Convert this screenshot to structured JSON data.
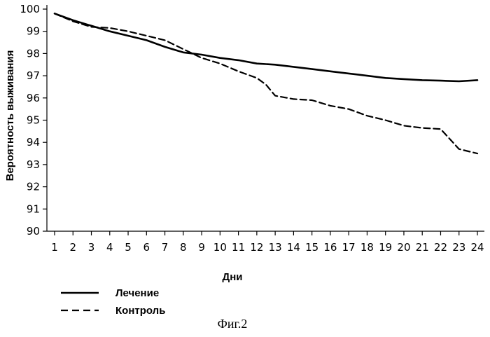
{
  "chart_data": {
    "type": "line",
    "title": "",
    "xlabel": "Дни",
    "ylabel": "Вероятность выживания",
    "caption": "Фиг.2",
    "xlim": [
      1,
      24
    ],
    "ylim": [
      90,
      100
    ],
    "x_ticks": [
      "1",
      "2",
      "3",
      "4",
      "5",
      "6",
      "7",
      "8",
      "9",
      "10",
      "11",
      "12",
      "13",
      "14",
      "15",
      "16",
      "17",
      "18",
      "19",
      "20",
      "21",
      "22",
      "23",
      "24"
    ],
    "y_ticks": [
      "90",
      "91",
      "92",
      "93",
      "94",
      "95",
      "96",
      "97",
      "98",
      "99",
      "100"
    ],
    "grid": false,
    "legend_position": "bottom-left",
    "series": [
      {
        "name": "Лечение",
        "style": "solid",
        "color": "#000000",
        "points": [
          [
            1,
            99.8
          ],
          [
            2,
            99.5
          ],
          [
            3,
            99.25
          ],
          [
            4,
            99.0
          ],
          [
            5,
            98.8
          ],
          [
            6,
            98.6
          ],
          [
            7,
            98.3
          ],
          [
            8,
            98.05
          ],
          [
            9,
            97.95
          ],
          [
            10,
            97.8
          ],
          [
            11,
            97.7
          ],
          [
            12,
            97.55
          ],
          [
            13,
            97.5
          ],
          [
            14,
            97.4
          ],
          [
            15,
            97.3
          ],
          [
            16,
            97.2
          ],
          [
            17,
            97.1
          ],
          [
            18,
            97.0
          ],
          [
            19,
            96.9
          ],
          [
            20,
            96.85
          ],
          [
            21,
            96.8
          ],
          [
            22,
            96.78
          ],
          [
            23,
            96.75
          ],
          [
            24,
            96.8
          ]
        ]
      },
      {
        "name": "Контроль",
        "style": "dashed",
        "color": "#000000",
        "points": [
          [
            1,
            99.8
          ],
          [
            2,
            99.45
          ],
          [
            3,
            99.2
          ],
          [
            4,
            99.15
          ],
          [
            5,
            99.0
          ],
          [
            6,
            98.8
          ],
          [
            7,
            98.6
          ],
          [
            8,
            98.2
          ],
          [
            9,
            97.8
          ],
          [
            10,
            97.55
          ],
          [
            11,
            97.2
          ],
          [
            12,
            96.9
          ],
          [
            12.5,
            96.6
          ],
          [
            13,
            96.1
          ],
          [
            14,
            95.95
          ],
          [
            15,
            95.9
          ],
          [
            16,
            95.65
          ],
          [
            17,
            95.5
          ],
          [
            18,
            95.2
          ],
          [
            19,
            95.0
          ],
          [
            20,
            94.75
          ],
          [
            21,
            94.65
          ],
          [
            22,
            94.6
          ],
          [
            23,
            93.7
          ],
          [
            24,
            93.5
          ]
        ]
      }
    ]
  }
}
